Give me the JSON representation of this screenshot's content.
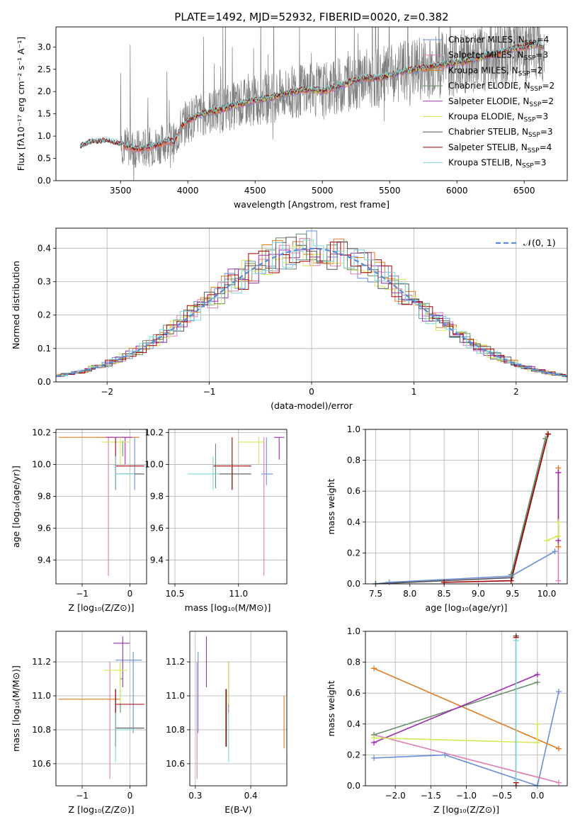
{
  "figure": {
    "title": "PLATE=1492, MJD=52932, FIBERID=0020, z=0.382"
  },
  "colors": {
    "chabrier_miles": "#6a8fd8",
    "salpeter_miles": "#e07bb6",
    "kroupa_miles": "#e07b22",
    "chabrier_elodie": "#6a8f6a",
    "salpeter_elodie": "#9b30b0",
    "kroupa_elodie": "#d4e85a",
    "chabrier_stelib": "#555555",
    "salpeter_stelib": "#a00000",
    "kroupa_stelib": "#7fd6d6",
    "data": "#7f7f7f",
    "normal": "#5b8bd6",
    "grid": "#b0b0b0"
  },
  "chart_data": [
    {
      "id": "spectrum",
      "type": "line",
      "title": "PLATE=1492, MJD=52932, FIBERID=0020, z=0.382",
      "xlabel": "wavelength [Angstrom, rest frame]",
      "ylabel": "Flux [fλ10⁻¹⁷ erg cm⁻² s⁻¹ A⁻¹]",
      "xlim": [
        3020,
        6820
      ],
      "ylim": [
        0,
        3.45
      ],
      "xticks": [
        3500,
        4000,
        4500,
        5000,
        5500,
        6000,
        6500
      ],
      "xticklabels": [
        "3500",
        "4000",
        "4500",
        "5000",
        "5500",
        "6000",
        "6500"
      ],
      "yticks": [
        0,
        0.5,
        1.0,
        1.5,
        2.0,
        2.5,
        3.0
      ],
      "yticklabels": [
        "0.0",
        "0.5",
        "1.0",
        "1.5",
        "2.0",
        "2.5",
        "3.0"
      ],
      "grid": false,
      "legend_position": "top-right",
      "legend": [
        {
          "label": "Chabrier MILES, N",
          "sub": "SSP",
          "tail": "=4",
          "color": "#6a8fd8"
        },
        {
          "label": "Salpeter MILES, N",
          "sub": "SSP",
          "tail": "=3",
          "color": "#e07bb6"
        },
        {
          "label": "Kroupa MILES, N",
          "sub": "SSP",
          "tail": "=2",
          "color": "#e07b22"
        },
        {
          "label": "Chabrier ELODIE, N",
          "sub": "SSP",
          "tail": "=2",
          "color": "#6a8f6a"
        },
        {
          "label": "Salpeter ELODIE, N",
          "sub": "SSP",
          "tail": "=2",
          "color": "#9b30b0"
        },
        {
          "label": "Kroupa ELODIE, N",
          "sub": "SSP",
          "tail": "=3",
          "color": "#d4e85a"
        },
        {
          "label": "Chabrier STELIB, N",
          "sub": "SSP",
          "tail": "=3",
          "color": "#555555"
        },
        {
          "label": "Salpeter STELIB, N",
          "sub": "SSP",
          "tail": "=4",
          "color": "#a00000"
        },
        {
          "label": "Kroupa STELIB, N",
          "sub": "SSP",
          "tail": "=3",
          "color": "#7fd6d6"
        }
      ],
      "continuum_x": [
        3200,
        3250,
        3300,
        3350,
        3400,
        3450,
        3500,
        3550,
        3600,
        3650,
        3700,
        3750,
        3800,
        3850,
        3900,
        3950,
        4000,
        4100,
        4200,
        4300,
        4400,
        4500,
        4600,
        4700,
        4800,
        4900,
        5000,
        5100,
        5200,
        5300,
        5400,
        5500,
        5600,
        5700,
        5800,
        5900,
        6000,
        6100,
        6200,
        6300,
        6400,
        6500,
        6600,
        6650
      ],
      "continuum_y": [
        0.75,
        0.82,
        0.88,
        0.86,
        0.9,
        0.85,
        0.82,
        0.76,
        0.72,
        0.7,
        0.74,
        0.78,
        0.82,
        0.9,
        0.85,
        1.2,
        1.35,
        1.5,
        1.55,
        1.65,
        1.72,
        1.8,
        1.85,
        1.92,
        2.0,
        2.05,
        2.0,
        2.1,
        2.2,
        2.3,
        2.3,
        2.35,
        2.45,
        2.5,
        2.55,
        2.6,
        2.65,
        2.7,
        2.78,
        2.85,
        2.95,
        3.0,
        3.05,
        3.0
      ]
    },
    {
      "id": "residuals",
      "type": "bar",
      "xlabel": "(data-model)/error",
      "ylabel": "Normed distribution",
      "xlim": [
        -2.5,
        2.5
      ],
      "ylim": [
        0,
        0.46
      ],
      "xticks": [
        -2,
        -1,
        0,
        1,
        2
      ],
      "xticklabels": [
        "−2",
        "−1",
        "0",
        "1",
        "2"
      ],
      "yticks": [
        0,
        0.1,
        0.2,
        0.3,
        0.4
      ],
      "yticklabels": [
        "0.0",
        "0.1",
        "0.2",
        "0.3",
        "0.4"
      ],
      "grid": true,
      "legend_position": "top-right",
      "legend": [
        {
          "label": "𝒩(0, 1)",
          "color": "#5b8bd6"
        }
      ],
      "bin_width": 0.1
    },
    {
      "id": "age-vs-Z",
      "type": "scatter",
      "xlabel": "Z [log₁₀(Z/Z⊙)]",
      "ylabel": "age  [log₁₀(age/yr)]",
      "xlim": [
        -1.55,
        0.35
      ],
      "ylim": [
        9.25,
        10.22
      ],
      "xticks": [
        -1,
        0
      ],
      "xticklabels": [
        "−1",
        "0"
      ],
      "yticks": [
        9.4,
        9.6,
        9.8,
        10.0,
        10.2
      ],
      "yticklabels": [
        "9.4",
        "9.6",
        "9.8",
        "10.0",
        "10.2"
      ],
      "grid": true
    },
    {
      "id": "age-vs-mass",
      "type": "scatter",
      "xlabel": "mass [log₁₀(M/M⊙)]",
      "ylabel": "",
      "xlim": [
        10.45,
        11.38
      ],
      "ylim": [
        9.25,
        10.22
      ],
      "xticks": [
        10.5,
        11.0
      ],
      "xticklabels": [
        "10.5",
        "11.0"
      ],
      "yticks": [
        9.4,
        9.6,
        9.8,
        10.0,
        10.2
      ],
      "yticklabels": [
        "9.4",
        "9.6",
        "9.8",
        "10.0",
        "10.2"
      ],
      "grid": true
    },
    {
      "id": "weight-vs-age",
      "type": "line",
      "xlabel": "age  [log₁₀(age/yr)]",
      "ylabel": "mass weight",
      "xlim": [
        7.35,
        10.3
      ],
      "ylim": [
        0,
        1.0
      ],
      "xticks": [
        7.5,
        8.0,
        8.5,
        9.0,
        9.5,
        10.0
      ],
      "xticklabels": [
        "7.5",
        "8.0",
        "8.5",
        "9.0",
        "9.5",
        "10.0"
      ],
      "yticks": [
        0,
        0.2,
        0.4,
        0.6,
        0.8,
        1.0
      ],
      "yticklabels": [
        "0.0",
        "0.2",
        "0.4",
        "0.6",
        "0.8",
        "1.0"
      ],
      "grid": true
    },
    {
      "id": "mass-vs-Z",
      "type": "scatter",
      "xlabel": "Z [log₁₀(Z/Z⊙)]",
      "ylabel": "mass [log₁₀(M/M⊙)]",
      "xlim": [
        -1.55,
        0.35
      ],
      "ylim": [
        10.47,
        11.38
      ],
      "xticks": [
        -1,
        0
      ],
      "xticklabels": [
        "−1",
        "0"
      ],
      "yticks": [
        10.6,
        10.8,
        11.0,
        11.2
      ],
      "yticklabels": [
        "10.6",
        "10.8",
        "11.0",
        "11.2"
      ],
      "grid": true
    },
    {
      "id": "mass-vs-ebv",
      "type": "scatter",
      "xlabel": "E(B-V)",
      "ylabel": "",
      "xlim": [
        0.29,
        0.465
      ],
      "ylim": [
        10.47,
        11.38
      ],
      "xticks": [
        0.3,
        0.4
      ],
      "xticklabels": [
        "0.3",
        "0.4"
      ],
      "yticks": [
        10.6,
        10.8,
        11.0,
        11.2
      ],
      "yticklabels": [
        "10.6",
        "10.8",
        "11.0",
        "11.2"
      ],
      "grid": true
    },
    {
      "id": "weight-vs-Z",
      "type": "line",
      "xlabel": "Z [log₁₀(Z/Z⊙)]",
      "ylabel": "mass weight",
      "xlim": [
        -2.42,
        0.42
      ],
      "ylim": [
        0,
        1.0
      ],
      "xticks": [
        -2.0,
        -1.5,
        -1.0,
        -0.5,
        0.0
      ],
      "xticklabels": [
        "−2.0",
        "−1.5",
        "−1.0",
        "−0.5",
        "0.0"
      ],
      "yticks": [
        0,
        0.2,
        0.4,
        0.6,
        0.8,
        1.0
      ],
      "yticklabels": [
        "0.0",
        "0.2",
        "0.4",
        "0.6",
        "0.8",
        "1.0"
      ],
      "grid": true
    }
  ],
  "estimates": {
    "age_Z": [
      {
        "color": "#6a8fd8",
        "x": 0.1,
        "xe": [
          -0.2,
          0.1
        ],
        "y": 9.94,
        "ye": [
          9.84,
          10.17
        ]
      },
      {
        "color": "#e07bb6",
        "x": -0.45,
        "xe": [
          -0.45,
          -0.45
        ],
        "y": 10.17,
        "ye": [
          9.3,
          10.17
        ]
      },
      {
        "color": "#e07b22",
        "x": -0.35,
        "xe": [
          -1.5,
          0.2
        ],
        "y": 10.17,
        "ye": [
          10.17,
          10.17
        ]
      },
      {
        "color": "#6a8f6a",
        "x": -0.15,
        "xe": [
          -0.15,
          -0.15
        ],
        "y": 10.1,
        "ye": [
          10.05,
          10.15
        ]
      },
      {
        "color": "#9b30b0",
        "x": -0.1,
        "xe": [
          -0.5,
          0.05
        ],
        "y": 10.17,
        "ye": [
          10.0,
          10.17
        ]
      },
      {
        "color": "#d4e85a",
        "x": -0.2,
        "xe": [
          -0.6,
          0.0
        ],
        "y": 10.14,
        "ye": [
          10.0,
          10.17
        ]
      },
      {
        "color": "#555555",
        "x": -0.3,
        "xe": [
          -0.3,
          0.3
        ],
        "y": 9.94,
        "ye": [
          9.84,
          10.0
        ]
      },
      {
        "color": "#a00000",
        "x": -0.3,
        "xe": [
          -0.3,
          0.3
        ],
        "y": 9.99,
        "ye": [
          9.84,
          10.17
        ]
      },
      {
        "color": "#7fd6d6",
        "x": -0.3,
        "xe": [
          -0.3,
          0.1
        ],
        "y": 9.94,
        "ye": [
          9.84,
          10.05
        ]
      }
    ],
    "age_mass": [
      {
        "color": "#6a8fd8",
        "x": 11.22,
        "xe": [
          11.18,
          11.27
        ],
        "y": 9.94,
        "ye": [
          9.87,
          10.17
        ]
      },
      {
        "color": "#e07bb6",
        "x": 11.2,
        "xe": [
          11.2,
          11.2
        ],
        "y": 10.17,
        "ye": [
          9.3,
          10.17
        ]
      },
      {
        "color": "#e07b22",
        "x": 10.98,
        "xe": [
          10.98,
          10.98
        ],
        "y": 10.17,
        "ye": [
          10.17,
          10.17
        ]
      },
      {
        "color": "#6a8f6a",
        "x": 10.82,
        "xe": [
          10.82,
          10.82
        ],
        "y": 10.0,
        "ye": [
          9.85,
          10.13
        ]
      },
      {
        "color": "#9b30b0",
        "x": 11.32,
        "xe": [
          11.28,
          11.36
        ],
        "y": 10.17,
        "ye": [
          10.03,
          10.17
        ]
      },
      {
        "color": "#d4e85a",
        "x": 11.16,
        "xe": [
          11.0,
          11.2
        ],
        "y": 10.14,
        "ye": [
          10.0,
          10.17
        ]
      },
      {
        "color": "#555555",
        "x": 10.95,
        "xe": [
          10.8,
          11.1
        ],
        "y": 9.94,
        "ye": [
          9.84,
          10.0
        ]
      },
      {
        "color": "#a00000",
        "x": 10.95,
        "xe": [
          10.8,
          11.1
        ],
        "y": 9.99,
        "ye": [
          9.84,
          10.17
        ]
      },
      {
        "color": "#7fd6d6",
        "x": 10.8,
        "xe": [
          10.6,
          10.85
        ],
        "y": 9.94,
        "ye": [
          9.84,
          10.05
        ]
      }
    ],
    "mass_Z": [
      {
        "color": "#6a8fd8",
        "x": 0.07,
        "xe": [
          -0.3,
          0.25
        ],
        "y": 11.21,
        "ye": [
          10.78,
          11.26
        ]
      },
      {
        "color": "#e07bb6",
        "x": -0.42,
        "xe": [
          -0.42,
          -0.42
        ],
        "y": 11.2,
        "ye": [
          10.51,
          11.2
        ]
      },
      {
        "color": "#e07b22",
        "x": -0.4,
        "xe": [
          -1.5,
          -0.2
        ],
        "y": 10.98,
        "ye": [
          10.98,
          10.98
        ]
      },
      {
        "color": "#6a8f6a",
        "x": -0.2,
        "xe": [
          -0.2,
          -0.15
        ],
        "y": 11.1,
        "ye": [
          10.9,
          11.2
        ]
      },
      {
        "color": "#9b30b0",
        "x": -0.15,
        "xe": [
          -0.35,
          0.0
        ],
        "y": 11.31,
        "ye": [
          11.05,
          11.35
        ]
      },
      {
        "color": "#d4e85a",
        "x": -0.2,
        "xe": [
          -0.55,
          -0.05
        ],
        "y": 11.15,
        "ye": [
          10.95,
          11.2
        ]
      },
      {
        "color": "#555555",
        "x": -0.3,
        "xe": [
          -0.3,
          0.3
        ],
        "y": 10.81,
        "ye": [
          10.7,
          11.04
        ]
      },
      {
        "color": "#a00000",
        "x": -0.3,
        "xe": [
          -0.3,
          0.3
        ],
        "y": 10.95,
        "ye": [
          10.7,
          11.04
        ]
      },
      {
        "color": "#7fd6d6",
        "x": -0.3,
        "xe": [
          -0.3,
          0.1
        ],
        "y": 10.8,
        "ye": [
          10.61,
          10.9
        ]
      }
    ],
    "mass_ebv": [
      {
        "color": "#6a8fd8",
        "x": 0.305,
        "ye": [
          10.78,
          11.26
        ]
      },
      {
        "color": "#e07bb6",
        "x": 0.303,
        "ye": [
          10.51,
          11.2
        ]
      },
      {
        "color": "#e07b22",
        "x": 0.46,
        "ye": [
          10.69,
          11.0
        ]
      },
      {
        "color": "#6a8f6a",
        "x": 0.36,
        "ye": [
          10.9,
          11.2
        ]
      },
      {
        "color": "#9b30b0",
        "x": 0.32,
        "ye": [
          11.05,
          11.35
        ]
      },
      {
        "color": "#d4e85a",
        "x": 0.36,
        "ye": [
          10.95,
          11.2
        ]
      },
      {
        "color": "#555555",
        "x": 0.355,
        "ye": [
          10.7,
          11.04
        ]
      },
      {
        "color": "#a00000",
        "x": 0.356,
        "ye": [
          10.7,
          11.04
        ]
      },
      {
        "color": "#7fd6d6",
        "x": 0.36,
        "ye": [
          10.61,
          10.9
        ]
      }
    ]
  },
  "weights": {
    "vs_age": [
      {
        "color": "#6a8fd8",
        "points": [
          [
            7.5,
            0.0
          ],
          [
            7.7,
            0.01
          ],
          [
            9.48,
            0.05
          ],
          [
            10.12,
            0.21
          ]
        ]
      },
      {
        "color": "#555555",
        "points": [
          [
            7.5,
            0.0
          ],
          [
            9.48,
            0.04
          ],
          [
            10.02,
            0.97
          ]
        ]
      },
      {
        "color": "#a00000",
        "points": [
          [
            8.5,
            0.01
          ],
          [
            9.48,
            0.02
          ],
          [
            10.02,
            0.97
          ]
        ]
      },
      {
        "color": "#7fd6d6",
        "points": [
          [
            9.48,
            0.06
          ],
          [
            9.98,
            0.94
          ]
        ]
      },
      {
        "color": "#6a8f6a",
        "points": [
          [
            9.48,
            0.06
          ],
          [
            9.98,
            0.94
          ]
        ]
      },
      {
        "color": "#e07bb6",
        "points": [
          [
            10.17,
            0.02
          ],
          [
            10.17,
            0.72
          ]
        ]
      },
      {
        "color": "#e07b22",
        "points": [
          [
            10.17,
            0.24
          ],
          [
            10.17,
            0.75
          ]
        ]
      },
      {
        "color": "#9b30b0",
        "points": [
          [
            10.17,
            0.28
          ],
          [
            10.17,
            0.72
          ]
        ]
      },
      {
        "color": "#d4e85a",
        "points": [
          [
            10.0,
            0.28
          ],
          [
            10.17,
            0.31
          ],
          [
            10.17,
            0.4
          ]
        ]
      }
    ],
    "vs_Z": [
      {
        "color": "#6a8fd8",
        "points": [
          [
            -2.3,
            0.18
          ],
          [
            -1.3,
            0.2
          ],
          [
            0.0,
            0.0
          ],
          [
            0.3,
            0.61
          ]
        ]
      },
      {
        "color": "#e07b22",
        "points": [
          [
            -2.3,
            0.76
          ],
          [
            0.3,
            0.24
          ]
        ]
      },
      {
        "color": "#e07bb6",
        "points": [
          [
            -2.3,
            0.33
          ],
          [
            0.3,
            0.02
          ]
        ]
      },
      {
        "color": "#6a8f6a",
        "points": [
          [
            -2.3,
            0.33
          ],
          [
            0.0,
            0.67
          ]
        ]
      },
      {
        "color": "#9b30b0",
        "points": [
          [
            -2.3,
            0.28
          ],
          [
            0.0,
            0.72
          ]
        ]
      },
      {
        "color": "#d4e85a",
        "points": [
          [
            -2.3,
            0.31
          ],
          [
            0.0,
            0.28
          ],
          [
            0.0,
            0.4
          ]
        ]
      },
      {
        "color": "#555555",
        "points": [
          [
            -0.3,
            0.0
          ],
          [
            -0.3,
            0.97
          ]
        ]
      },
      {
        "color": "#a00000",
        "points": [
          [
            -0.3,
            0.02
          ],
          [
            -0.3,
            0.96
          ]
        ]
      },
      {
        "color": "#7fd6d6",
        "points": [
          [
            -0.3,
            0.04
          ],
          [
            -0.3,
            0.94
          ]
        ]
      }
    ]
  }
}
